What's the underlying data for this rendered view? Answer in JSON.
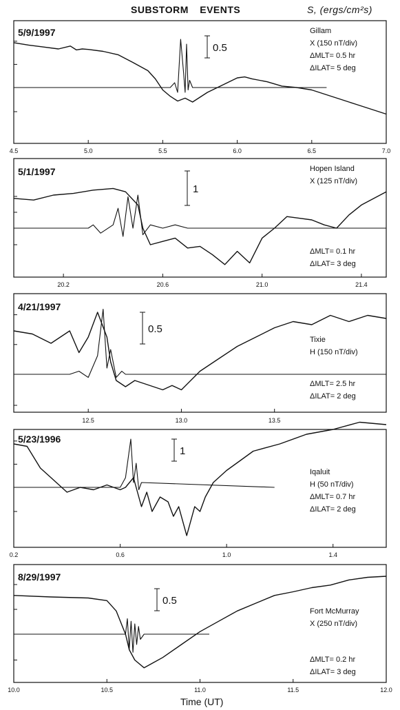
{
  "header": {
    "title": "SUBSTORM EVENTS",
    "flux_label": "S, (ergs/cm²s)"
  },
  "bottom_xlabel": "Time (UT)",
  "chart_data": [
    {
      "type": "line",
      "date": "5/9/1997",
      "station": "Gillam",
      "component": "X (150 nT/div)",
      "dmlt": "ΔMLT= 0.5 hr",
      "dilat": "ΔILAT= 5 deg",
      "scale_label": "0.5",
      "xlim": [
        4.5,
        7.0
      ],
      "xticks": [
        "4.5",
        "5.0",
        "5.5",
        "6.0",
        "6.5",
        "7.0"
      ],
      "grid": false,
      "series": [
        {
          "x": [
            4.5,
            4.6,
            4.7,
            4.8,
            4.88,
            4.92,
            4.96,
            5.0,
            5.1,
            5.2,
            5.3,
            5.4,
            5.45,
            5.5,
            5.55,
            5.6,
            5.65,
            5.7,
            5.75,
            5.8,
            5.9,
            6.0,
            6.05,
            6.1,
            6.15,
            6.2,
            6.3,
            6.4,
            6.5,
            6.6,
            6.7,
            6.8,
            6.9,
            7.0
          ],
          "y": [
            0.93,
            0.88,
            0.84,
            0.8,
            0.86,
            0.78,
            0.8,
            0.79,
            0.75,
            0.68,
            0.52,
            0.35,
            0.18,
            -0.05,
            -0.18,
            -0.28,
            -0.22,
            -0.3,
            -0.2,
            -0.1,
            0.05,
            0.2,
            0.22,
            0.18,
            0.15,
            0.12,
            0.03,
            0.0,
            -0.05,
            -0.15,
            -0.25,
            -0.35,
            -0.45,
            -0.55
          ]
        },
        {
          "x": [
            4.5,
            5.55,
            5.58,
            5.6,
            5.62,
            5.64,
            5.65,
            5.66,
            5.67,
            5.68,
            5.7,
            6.6
          ],
          "y": [
            0,
            0,
            0.1,
            -0.1,
            1.0,
            0.3,
            -0.1,
            0.9,
            -0.05,
            0.15,
            0,
            0
          ]
        }
      ]
    },
    {
      "type": "line",
      "date": "5/1/1997",
      "station": "Hopen Island",
      "component": "X (125 nT/div)",
      "dmlt": "ΔMLT= 0.1 hr",
      "dilat": "ΔILAT= 3 deg",
      "scale_label": "1",
      "xlim": [
        20.0,
        21.5
      ],
      "xticks": [
        "20.2",
        "20.6",
        "21.0",
        "21.4"
      ],
      "grid": false,
      "series": [
        {
          "x": [
            20.0,
            20.08,
            20.16,
            20.24,
            20.32,
            20.4,
            20.45,
            20.5,
            20.52,
            20.55,
            20.6,
            20.65,
            20.7,
            20.75,
            20.8,
            20.85,
            20.9,
            20.95,
            21.0,
            21.05,
            21.1,
            21.15,
            21.2,
            21.25,
            21.3,
            21.35,
            21.4,
            21.5
          ],
          "y": [
            0.9,
            0.85,
            1.0,
            1.05,
            1.15,
            1.2,
            1.1,
            0.7,
            0.0,
            -0.5,
            -0.4,
            -0.3,
            -0.6,
            -0.55,
            -0.8,
            -1.1,
            -0.7,
            -1.05,
            -0.3,
            0.0,
            0.35,
            0.3,
            0.25,
            0.1,
            0.0,
            0.4,
            0.7,
            1.1
          ]
        },
        {
          "x": [
            20.0,
            20.3,
            20.32,
            20.35,
            20.4,
            20.42,
            20.44,
            20.46,
            20.48,
            20.5,
            20.52,
            20.55,
            20.6,
            20.65,
            20.7,
            21.5
          ],
          "y": [
            0,
            0,
            0.1,
            -0.15,
            0.1,
            0.6,
            -0.25,
            0.95,
            0.0,
            1.0,
            -0.2,
            0.1,
            0.0,
            0.1,
            0,
            0
          ]
        }
      ]
    },
    {
      "type": "line",
      "date": "4/21/1997",
      "station": "Tixie",
      "component": "H (150 nT/div)",
      "dmlt": "ΔMLT= 2.5 hr",
      "dilat": "ΔILAT= 2 deg",
      "scale_label": "0.5",
      "xlim": [
        12.1,
        14.1
      ],
      "xticks": [
        "12.5",
        "13.0",
        "13.5"
      ],
      "grid": false,
      "series": [
        {
          "x": [
            12.1,
            12.2,
            12.3,
            12.4,
            12.45,
            12.5,
            12.55,
            12.6,
            12.62,
            12.65,
            12.7,
            12.75,
            12.8,
            12.85,
            12.9,
            12.95,
            13.0,
            13.05,
            13.1,
            13.2,
            13.3,
            13.4,
            13.5,
            13.6,
            13.7,
            13.8,
            13.9,
            14.0,
            14.1
          ],
          "y": [
            0.7,
            0.65,
            0.5,
            0.7,
            0.35,
            0.6,
            1.0,
            0.6,
            0.2,
            -0.1,
            -0.2,
            -0.1,
            -0.15,
            -0.2,
            -0.25,
            -0.18,
            -0.25,
            -0.1,
            0.05,
            0.25,
            0.45,
            0.6,
            0.75,
            0.85,
            0.8,
            0.95,
            0.85,
            0.95,
            0.9
          ]
        },
        {
          "x": [
            12.1,
            12.4,
            12.45,
            12.5,
            12.55,
            12.58,
            12.6,
            12.62,
            12.65,
            12.68,
            12.7,
            14.1
          ],
          "y": [
            0,
            0,
            0.05,
            -0.05,
            0.3,
            1.05,
            0.1,
            0.4,
            -0.05,
            0.05,
            0,
            0
          ]
        }
      ]
    },
    {
      "type": "line",
      "date": "5/23/1996",
      "station": "Iqaluit",
      "component": "H (50 nT/div)",
      "dmlt": "ΔMLT= 0.7 hr",
      "dilat": "ΔILAT= 2 deg",
      "scale_label": "1",
      "xlim": [
        0.2,
        1.6
      ],
      "xticks": [
        "0.2",
        "0.6",
        "1.0",
        "1.4"
      ],
      "grid": false,
      "series": [
        {
          "x": [
            0.2,
            0.25,
            0.3,
            0.35,
            0.4,
            0.45,
            0.5,
            0.55,
            0.6,
            0.62,
            0.65,
            0.68,
            0.7,
            0.72,
            0.75,
            0.78,
            0.8,
            0.82,
            0.85,
            0.88,
            0.9,
            0.92,
            0.95,
            1.0,
            1.05,
            1.1,
            1.2,
            1.3,
            1.4,
            1.5,
            1.6
          ],
          "y": [
            0.9,
            0.85,
            0.4,
            0.15,
            -0.1,
            0.0,
            -0.05,
            0.05,
            -0.05,
            0.0,
            0.2,
            -0.4,
            -0.1,
            -0.5,
            -0.2,
            -0.3,
            -0.6,
            -0.4,
            -1.0,
            -0.4,
            -0.5,
            -0.2,
            0.1,
            0.35,
            0.55,
            0.75,
            0.9,
            1.1,
            1.2,
            1.35,
            1.3
          ]
        },
        {
          "x": [
            0.2,
            0.6,
            0.62,
            0.64,
            0.65,
            0.66,
            0.67,
            0.68,
            1.18
          ],
          "y": [
            0,
            0,
            0.2,
            1.0,
            0.1,
            0.5,
            -0.05,
            0.1,
            0
          ]
        }
      ]
    },
    {
      "type": "line",
      "date": "8/29/1997",
      "station": "Fort McMurray",
      "component": "X (250 nT/div)",
      "dmlt": "ΔMLT= 0.2 hr",
      "dilat": "ΔILAT= 3 deg",
      "scale_label": "0.5",
      "xlim": [
        10.0,
        12.0
      ],
      "xticks": [
        "10.0",
        "10.5",
        "11.0",
        "11.5",
        "12.0"
      ],
      "grid": false,
      "series": [
        {
          "x": [
            10.0,
            10.2,
            10.4,
            10.5,
            10.55,
            10.6,
            10.62,
            10.65,
            10.7,
            10.75,
            10.8,
            10.9,
            11.0,
            11.1,
            11.2,
            11.3,
            11.4,
            11.5,
            11.6,
            11.7,
            11.8,
            11.9,
            12.0
          ],
          "y": [
            0.75,
            0.72,
            0.7,
            0.65,
            0.45,
            0.0,
            -0.3,
            -0.5,
            -0.65,
            -0.55,
            -0.45,
            -0.2,
            0.05,
            0.25,
            0.45,
            0.6,
            0.75,
            0.82,
            0.9,
            0.95,
            1.05,
            1.1,
            1.12
          ]
        },
        {
          "x": [
            10.0,
            10.6,
            10.61,
            10.62,
            10.63,
            10.64,
            10.65,
            10.66,
            10.67,
            10.68,
            10.7,
            11.05
          ],
          "y": [
            0,
            0,
            0.3,
            -0.3,
            0.25,
            -0.35,
            0.2,
            -0.2,
            0.15,
            -0.1,
            0,
            0
          ]
        }
      ]
    }
  ]
}
